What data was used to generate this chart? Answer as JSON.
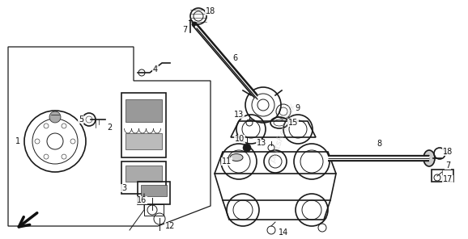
{
  "background_color": "#ffffff",
  "line_color": "#1a1a1a",
  "label_color": "#111111",
  "watermark_color": "#cccccc",
  "arrow_color": "#111111",
  "figure_width": 5.78,
  "figure_height": 2.96,
  "dpi": 100,
  "lw_thick": 2.5,
  "lw_main": 1.2,
  "lw_thin": 0.7,
  "lw_xtra": 0.4,
  "label_fontsize": 7.0
}
